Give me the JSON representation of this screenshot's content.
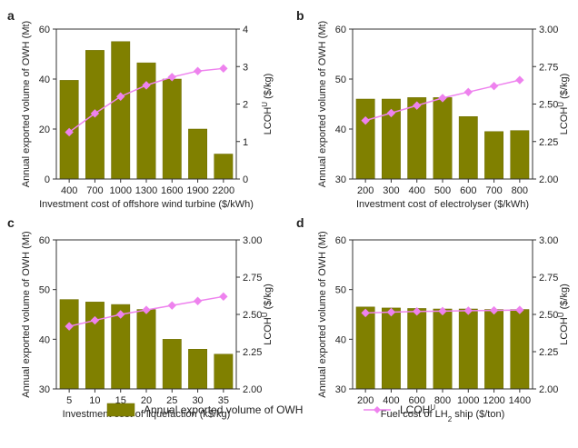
{
  "colors": {
    "bar": "#808000",
    "bar_edge": "#6b6b00",
    "line": "#ee82ee",
    "marker": "#ee82ee",
    "axis": "#333333"
  },
  "legend": {
    "bar_label": "Annual exported volume of OWH",
    "line_label": "LCOH",
    "line_label_sup": "U"
  },
  "chart_data": [
    {
      "panel": "a",
      "type": "bar",
      "xlabel": "Investment cost of offshore wind turbine ($/kWh)",
      "ylabel_left": "Annual exported volume of OWH (Mt)",
      "ylabel_right": "LCOH",
      "ylabel_right_sup": "U",
      "ylabel_right_unit": " ($/kg)",
      "categories": [
        "400",
        "700",
        "1000",
        "1300",
        "1600",
        "1900",
        "2200"
      ],
      "bar_values": [
        39.5,
        51.5,
        55,
        46.5,
        40,
        20,
        10
      ],
      "line_values": [
        1.25,
        1.75,
        2.2,
        2.5,
        2.72,
        2.88,
        2.95
      ],
      "ylim_left": [
        0,
        60
      ],
      "yticks_left": [
        "0",
        "20",
        "40",
        "60"
      ],
      "yticks_left_vals": [
        0,
        20,
        40,
        60
      ],
      "ylim_right": [
        0,
        4
      ],
      "yticks_right": [
        "0",
        "1",
        "2",
        "3",
        "4"
      ],
      "yticks_right_vals": [
        0,
        1,
        2,
        3,
        4
      ]
    },
    {
      "panel": "b",
      "type": "bar",
      "xlabel": "Investment cost of electrolyser ($/kWh)",
      "ylabel_left": "Annual exported volume of OWH (Mt)",
      "ylabel_right": "LCOH",
      "ylabel_right_sup": "U",
      "ylabel_right_unit": " ($/kg)",
      "categories": [
        "200",
        "300",
        "400",
        "500",
        "600",
        "700",
        "800"
      ],
      "bar_values": [
        46,
        46,
        46.3,
        46.3,
        42.5,
        39.5,
        39.7
      ],
      "line_values": [
        2.39,
        2.44,
        2.49,
        2.54,
        2.58,
        2.62,
        2.66
      ],
      "ylim_left": [
        30,
        60
      ],
      "yticks_left": [
        "30",
        "40",
        "50",
        "60"
      ],
      "yticks_left_vals": [
        30,
        40,
        50,
        60
      ],
      "ylim_right": [
        2.0,
        3.0
      ],
      "yticks_right": [
        "2.00",
        "2.25",
        "2.50",
        "2.75",
        "3.00"
      ],
      "yticks_right_vals": [
        2.0,
        2.25,
        2.5,
        2.75,
        3.0
      ]
    },
    {
      "panel": "c",
      "type": "bar",
      "xlabel": "Investment cost of liquefaction (k$/kg)",
      "ylabel_left": "Annual exported volume of OWH (Mt)",
      "ylabel_right": "LCOH",
      "ylabel_right_sup": "U",
      "ylabel_right_unit": " ($/kg)",
      "categories": [
        "5",
        "10",
        "15",
        "20",
        "25",
        "30",
        "35"
      ],
      "bar_values": [
        48,
        47.5,
        47,
        46,
        40,
        38,
        37
      ],
      "line_values": [
        2.42,
        2.46,
        2.5,
        2.53,
        2.56,
        2.59,
        2.62
      ],
      "ylim_left": [
        30,
        60
      ],
      "yticks_left": [
        "30",
        "40",
        "50",
        "60"
      ],
      "yticks_left_vals": [
        30,
        40,
        50,
        60
      ],
      "ylim_right": [
        2.0,
        3.0
      ],
      "yticks_right": [
        "2.00",
        "2.25",
        "2.50",
        "2.75",
        "3.00"
      ],
      "yticks_right_vals": [
        2.0,
        2.25,
        2.5,
        2.75,
        3.0
      ]
    },
    {
      "panel": "d",
      "type": "bar",
      "xlabel": "Fuel cost of LH",
      "xlabel_sub": "2",
      "xlabel_tail": " ship ($/ton)",
      "ylabel_left": "Annual exported volume of OWH (Mt)",
      "ylabel_right": "LCOH",
      "ylabel_right_sup": "U",
      "ylabel_right_unit": " ($/kg)",
      "categories": [
        "200",
        "400",
        "600",
        "800",
        "1000",
        "1200",
        "1400"
      ],
      "bar_values": [
        46.5,
        46.3,
        46.2,
        46.1,
        46.1,
        46.0,
        46.0
      ],
      "line_values": [
        2.51,
        2.515,
        2.52,
        2.522,
        2.525,
        2.527,
        2.53
      ],
      "ylim_left": [
        30,
        60
      ],
      "yticks_left": [
        "30",
        "40",
        "50",
        "60"
      ],
      "yticks_left_vals": [
        30,
        40,
        50,
        60
      ],
      "ylim_right": [
        2.0,
        3.0
      ],
      "yticks_right": [
        "2.00",
        "2.25",
        "2.50",
        "2.75",
        "3.00"
      ],
      "yticks_right_vals": [
        2.0,
        2.25,
        2.5,
        2.75,
        3.0
      ]
    }
  ]
}
